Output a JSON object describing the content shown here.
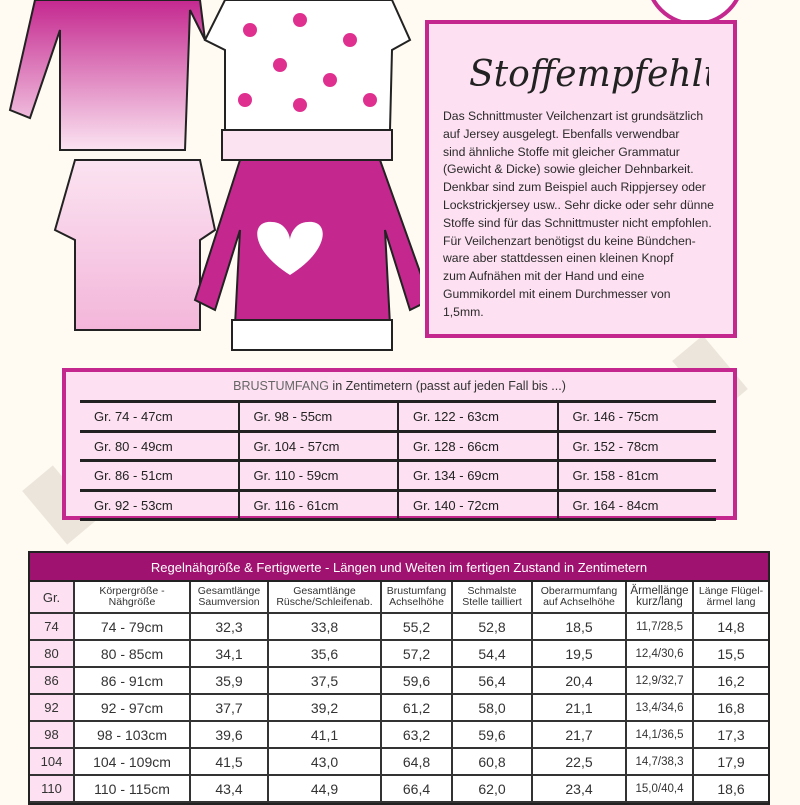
{
  "colors": {
    "accent": "#c4288f",
    "header_bg": "#a0126f",
    "box_bg": "#fde0f1",
    "page_bg": "#fffbf2"
  },
  "fabric": {
    "title": "Stoffempfehlung",
    "text": "Das Schnittmuster Veilchenzart ist grundsätzlich\nauf Jersey ausgelegt. Ebenfalls verwendbar\nsind ähnliche Stoffe mit gleicher Grammatur\n(Gewicht & Dicke) sowie gleicher Dehnbarkeit.\nDenkbar sind zum Beispiel auch Rippjersey oder\nLockstrickjersey usw.. Sehr dicke oder sehr dünne\nStoffe sind für das Schnittmuster nicht empfohlen.\nFür Veilchenzart benötigst du keine Bündchen-\nware aber stattdessen einen kleinen Knopf\nzum Aufnähen mit der Hand und eine\nGummikordel mit einem Durchmesser von\n1,5mm."
  },
  "brust": {
    "title_caps": "BRUSTUMFANG",
    "title_rest": " in Zentimetern (passt auf jeden Fall bis ...)",
    "rows": [
      [
        "Gr. 74 - 47cm",
        "Gr. 98 - 55cm",
        "Gr. 122 - 63cm",
        "Gr. 146 - 75cm"
      ],
      [
        "Gr. 80 - 49cm",
        "Gr. 104 - 57cm",
        "Gr. 128 - 66cm",
        "Gr. 152 - 78cm"
      ],
      [
        "Gr. 86 - 51cm",
        "Gr. 110 - 59cm",
        "Gr. 134 - 69cm",
        "Gr. 158 - 81cm"
      ],
      [
        "Gr. 92 - 53cm",
        "Gr. 116 - 61cm",
        "Gr. 140 - 72cm",
        "Gr. 164 - 84cm"
      ]
    ]
  },
  "table": {
    "title": "Regelnähgröße & Fertigwerte - Längen und Weiten im fertigen Zustand in Zentimetern",
    "columns": [
      [
        "Gr."
      ],
      [
        "Körpergröße -",
        "Nähgröße"
      ],
      [
        "Gesamtlänge",
        "Saumversion"
      ],
      [
        "Gesamtlänge",
        "Rüsche/Schleifenab."
      ],
      [
        "Brustumfang",
        "Achselhöhe"
      ],
      [
        "Schmalste",
        "Stelle tailliert"
      ],
      [
        "Oberarmumfang",
        "auf Achselhöhe"
      ],
      [
        "Ärmellänge",
        "kurz/lang"
      ],
      [
        "Länge Flügel-",
        "ärmel lang"
      ]
    ],
    "rows": [
      [
        "74",
        "74 - 79cm",
        "32,3",
        "33,8",
        "55,2",
        "52,8",
        "18,5",
        "11,7/28,5",
        "14,8"
      ],
      [
        "80",
        "80 - 85cm",
        "34,1",
        "35,6",
        "57,2",
        "54,4",
        "19,5",
        "12,4/30,6",
        "15,5"
      ],
      [
        "86",
        "86 - 91cm",
        "35,9",
        "37,5",
        "59,6",
        "56,4",
        "20,4",
        "12,9/32,7",
        "16,2"
      ],
      [
        "92",
        "92 - 97cm",
        "37,7",
        "39,2",
        "61,2",
        "58,0",
        "21,1",
        "13,4/34,6",
        "16,8"
      ],
      [
        "98",
        "98 - 103cm",
        "39,6",
        "41,1",
        "63,2",
        "59,6",
        "21,7",
        "14,1/36,5",
        "17,3"
      ],
      [
        "104",
        "104 - 109cm",
        "41,5",
        "43,0",
        "64,8",
        "60,8",
        "22,5",
        "14,7/38,3",
        "17,9"
      ],
      [
        "110",
        "110 - 115cm",
        "43,4",
        "44,9",
        "66,4",
        "62,0",
        "23,4",
        "15,0/40,4",
        "18,6"
      ]
    ]
  }
}
